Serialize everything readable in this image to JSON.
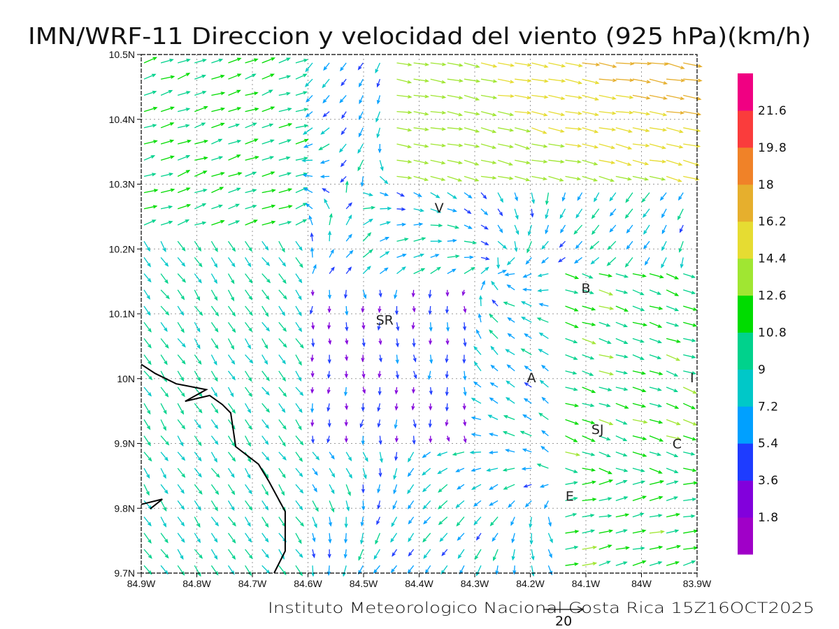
{
  "title": "IMN/WRF-11 Direccion y velocidad del viento (925 hPa)(km/h)",
  "footer": "Instituto Meteorologico Nacional Costa Rica  15Z16OCT2025",
  "reference_vector": {
    "label": "20",
    "value": 20
  },
  "map": {
    "lon_range": [
      -84.9,
      -83.9
    ],
    "lat_range": [
      9.7,
      10.5
    ],
    "x_ticks": [
      "84.9W",
      "84.8W",
      "84.7W",
      "84.6W",
      "84.5W",
      "84.4W",
      "84.3W",
      "84.2W",
      "84.1W",
      "84W",
      "83.9W"
    ],
    "y_ticks": [
      "9.7N",
      "9.8N",
      "9.9N",
      "10N",
      "10.1N",
      "10.2N",
      "10.3N",
      "10.4N",
      "10.5N"
    ],
    "towns": [
      {
        "label": "V",
        "lon": -84.364,
        "lat": 10.264
      },
      {
        "label": "SR",
        "lon": -84.462,
        "lat": 10.091
      },
      {
        "label": "B",
        "lon": -84.1,
        "lat": 10.14
      },
      {
        "label": "A",
        "lon": -84.198,
        "lat": 10.002
      },
      {
        "label": "I",
        "lon": -83.909,
        "lat": 10.002
      },
      {
        "label": "SJ",
        "lon": -84.079,
        "lat": 9.922
      },
      {
        "label": "C",
        "lon": -83.936,
        "lat": 9.9
      },
      {
        "label": "E",
        "lon": -84.129,
        "lat": 9.819
      }
    ],
    "coastline": [
      [
        -84.9,
        10.022
      ],
      [
        -84.875,
        10.008
      ],
      [
        -84.837,
        9.992
      ],
      [
        -84.783,
        9.983
      ],
      [
        -84.821,
        9.965
      ],
      [
        -84.777,
        9.974
      ],
      [
        -84.754,
        9.96
      ],
      [
        -84.739,
        9.947
      ],
      [
        -84.73,
        9.895
      ],
      [
        -84.689,
        9.868
      ],
      [
        -84.67,
        9.841
      ],
      [
        -84.641,
        9.795
      ],
      [
        -84.641,
        9.734
      ],
      [
        -84.661,
        9.7
      ]
    ],
    "coastline2": [
      [
        -84.9,
        9.806
      ],
      [
        -84.862,
        9.814
      ],
      [
        -84.884,
        9.799
      ]
    ]
  },
  "colorbar": {
    "labels": [
      "1.8",
      "3.6",
      "5.4",
      "7.2",
      "9",
      "10.8",
      "12.6",
      "14.4",
      "16.2",
      "18",
      "19.8",
      "21.6"
    ],
    "colors": [
      "#a000c8",
      "#8200dc",
      "#1e3cff",
      "#00a0ff",
      "#00c8c8",
      "#00d28c",
      "#00dc00",
      "#a0e632",
      "#e6dc32",
      "#e6af2d",
      "#f08228",
      "#fa3c3c",
      "#f00082"
    ]
  }
}
